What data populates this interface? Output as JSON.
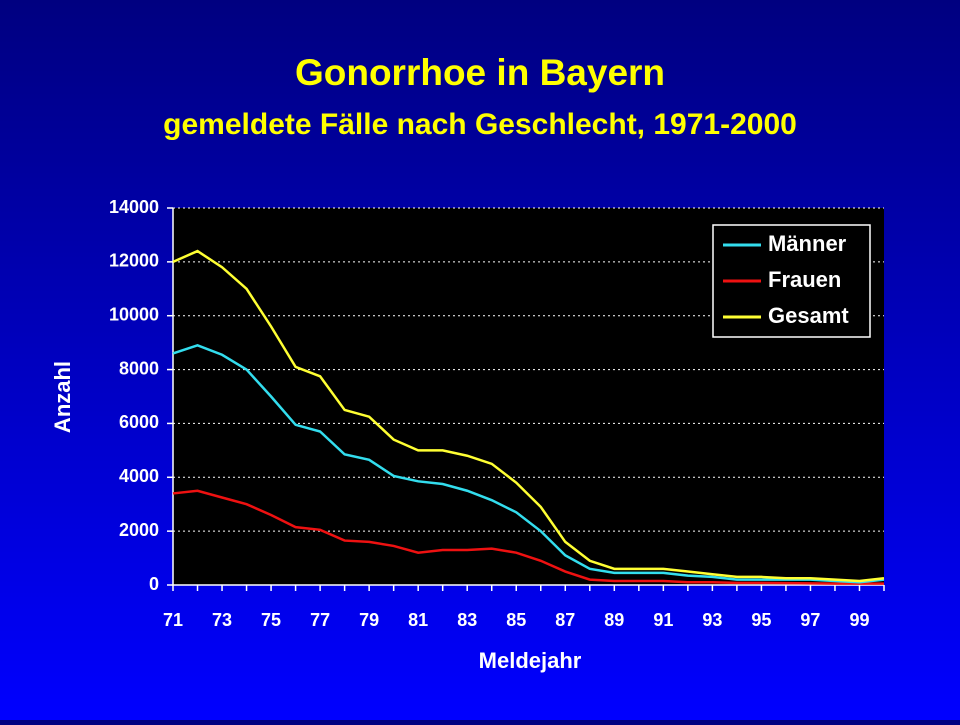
{
  "chart_data": {
    "type": "line",
    "title": "Gonorrhoe in Bayern",
    "subtitle": "gemeldete Fälle nach Geschlecht, 1971-2000",
    "x_label": "Meldejahr",
    "y_label": "Anzahl",
    "categories": [
      "71",
      null,
      "73",
      null,
      "75",
      null,
      "77",
      null,
      "79",
      null,
      "81",
      null,
      "83",
      null,
      "85",
      null,
      "87",
      null,
      "89",
      null,
      "91",
      null,
      "93",
      null,
      "95",
      null,
      "97",
      null,
      "99",
      null
    ],
    "series": [
      {
        "name": "Männer",
        "color": "#33ddee",
        "values": [
          8600,
          8900,
          8550,
          8000,
          7000,
          5950,
          5700,
          4850,
          4650,
          4050,
          3850,
          3750,
          3500,
          3150,
          2700,
          2000,
          1100,
          600,
          450,
          450,
          450,
          350,
          300,
          200,
          200,
          200,
          200,
          150,
          100,
          200
        ]
      },
      {
        "name": "Frauen",
        "color": "#ee1111",
        "values": [
          3400,
          3500,
          3250,
          3000,
          2600,
          2150,
          2050,
          1650,
          1600,
          1450,
          1200,
          1300,
          1300,
          1350,
          1200,
          900,
          500,
          200,
          150,
          150,
          150,
          100,
          100,
          80,
          80,
          70,
          60,
          50,
          50,
          50
        ]
      },
      {
        "name": "Gesamt",
        "color": "#ffff33",
        "values": [
          12000,
          12400,
          11800,
          11000,
          9600,
          8100,
          7750,
          6500,
          6250,
          5400,
          5000,
          5000,
          4800,
          4500,
          3800,
          2900,
          1600,
          900,
          600,
          600,
          600,
          500,
          400,
          300,
          300,
          250,
          250,
          200,
          150,
          250
        ]
      }
    ],
    "ylim": [
      0,
      14000
    ],
    "yticks": [
      0,
      2000,
      4000,
      6000,
      8000,
      10000,
      12000,
      14000
    ],
    "grid": true,
    "legend": "top-right"
  }
}
